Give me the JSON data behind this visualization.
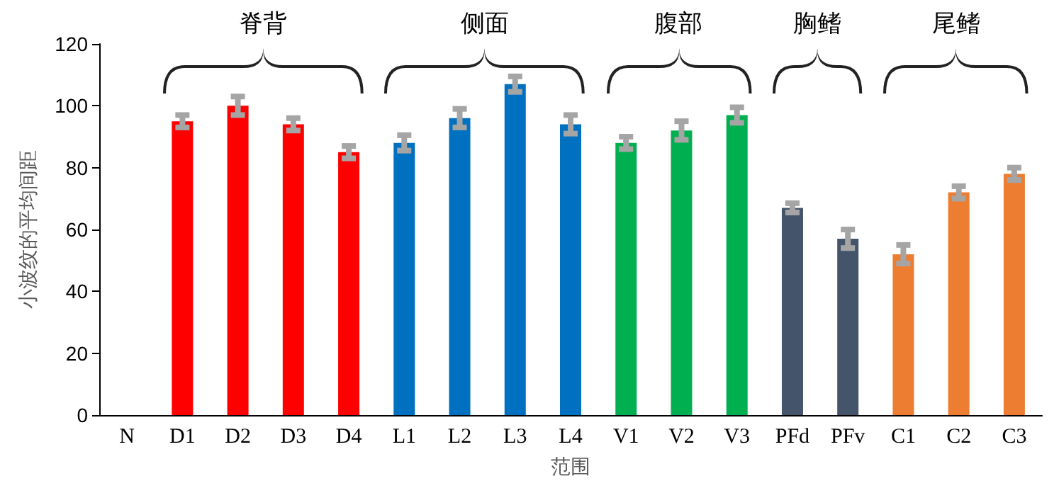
{
  "chart_data": {
    "type": "bar",
    "xlabel": "范围",
    "ylabel": "小波纹的平均间距",
    "categories": [
      "N",
      "D1",
      "D2",
      "D3",
      "D4",
      "L1",
      "L2",
      "L3",
      "L4",
      "V1",
      "V2",
      "V3",
      "PFd",
      "PFv",
      "C1",
      "C2",
      "C3"
    ],
    "values": [
      0,
      95,
      100,
      94,
      85,
      88,
      96,
      107,
      94,
      88,
      92,
      97,
      67,
      57,
      52,
      72,
      78
    ],
    "colors": [
      "#a5a5a5",
      "#ff0000",
      "#ff0000",
      "#ff0000",
      "#ff0000",
      "#0070c0",
      "#0070c0",
      "#0070c0",
      "#0070c0",
      "#00b050",
      "#00b050",
      "#00b050",
      "#44546a",
      "#44546a",
      "#ed7d31",
      "#ed7d31",
      "#ed7d31"
    ],
    "errors": [
      null,
      2,
      3,
      2,
      2,
      2.5,
      3,
      2.5,
      3,
      2,
      3,
      2.5,
      1.5,
      3,
      3,
      2,
      2
    ],
    "annotations": [
      "脊背",
      "侧面",
      "腹部",
      "胸鳍",
      "尾鳍"
    ],
    "ylim": [
      0,
      120
    ],
    "yticks": [
      0,
      20,
      40,
      60,
      80,
      100,
      120
    ],
    "grid": false
  }
}
